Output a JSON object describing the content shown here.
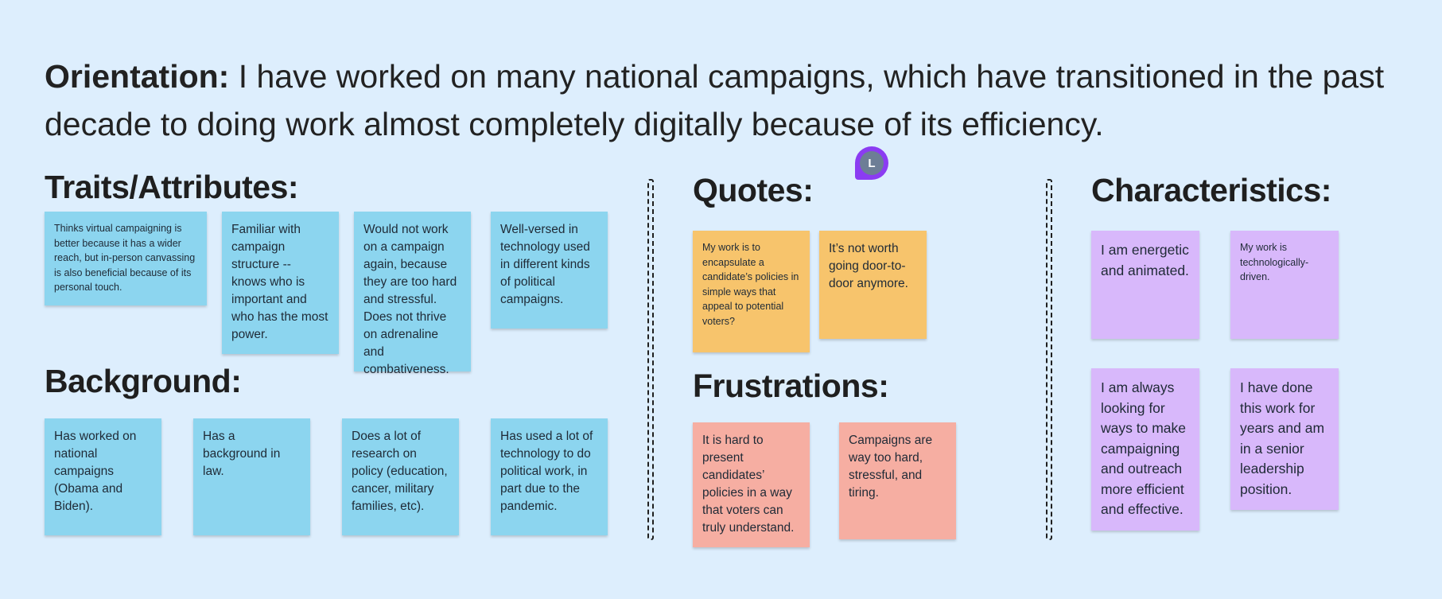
{
  "orientation": {
    "label": "Orientation:",
    "text": " I have worked on many national campaigns, which have transitioned in the past decade to doing work almost completely digitally because of its efficiency."
  },
  "sections": {
    "traits": "Traits/Attributes:",
    "background": "Background:",
    "quotes": "Quotes:",
    "frustrations": "Frustrations:",
    "characteristics": "Characteristics:"
  },
  "traits_notes": [
    "Thinks virtual campaigning is better because it has a wider reach, but in-person canvassing is also beneficial because of its personal touch.",
    "Familiar with campaign structure -- knows who is important and who has the most power.",
    "Would not work on a campaign again, because they are too hard and stressful. Does not thrive on adrenaline and combativeness.",
    "Well-versed in technology used in different kinds of political campaigns."
  ],
  "background_notes": [
    "Has worked on national campaigns (Obama and Biden).",
    "Has a background in law.",
    "Does a lot of research on policy (education, cancer, military families, etc).",
    "Has used a lot of technology to do political work, in part due to the pandemic."
  ],
  "quotes_notes": [
    "My work is to encapsulate a candidate’s policies in simple ways that appeal to potential voters?",
    "It’s not worth going door-to-door anymore."
  ],
  "frustrations_notes": [
    "It is hard to present candidates’ policies in a way that voters can truly understand.",
    "Campaigns are way too hard, stressful, and tiring."
  ],
  "characteristics_notes": [
    "I am energetic and animated.",
    "My work is technologically-driven.",
    "I am always looking for ways to make campaigning and outreach more efficient and effective.",
    "I have done this work for years and am in a senior leadership position."
  ],
  "cursor": {
    "initial": "L",
    "accent": "#8b3cf2"
  },
  "colors": {
    "background": "#ddeefd",
    "blue_note": "#8cd5ef",
    "orange_note": "#f7c46c",
    "salmon_note": "#f6aea2",
    "purple_note": "#d8b8fb"
  }
}
